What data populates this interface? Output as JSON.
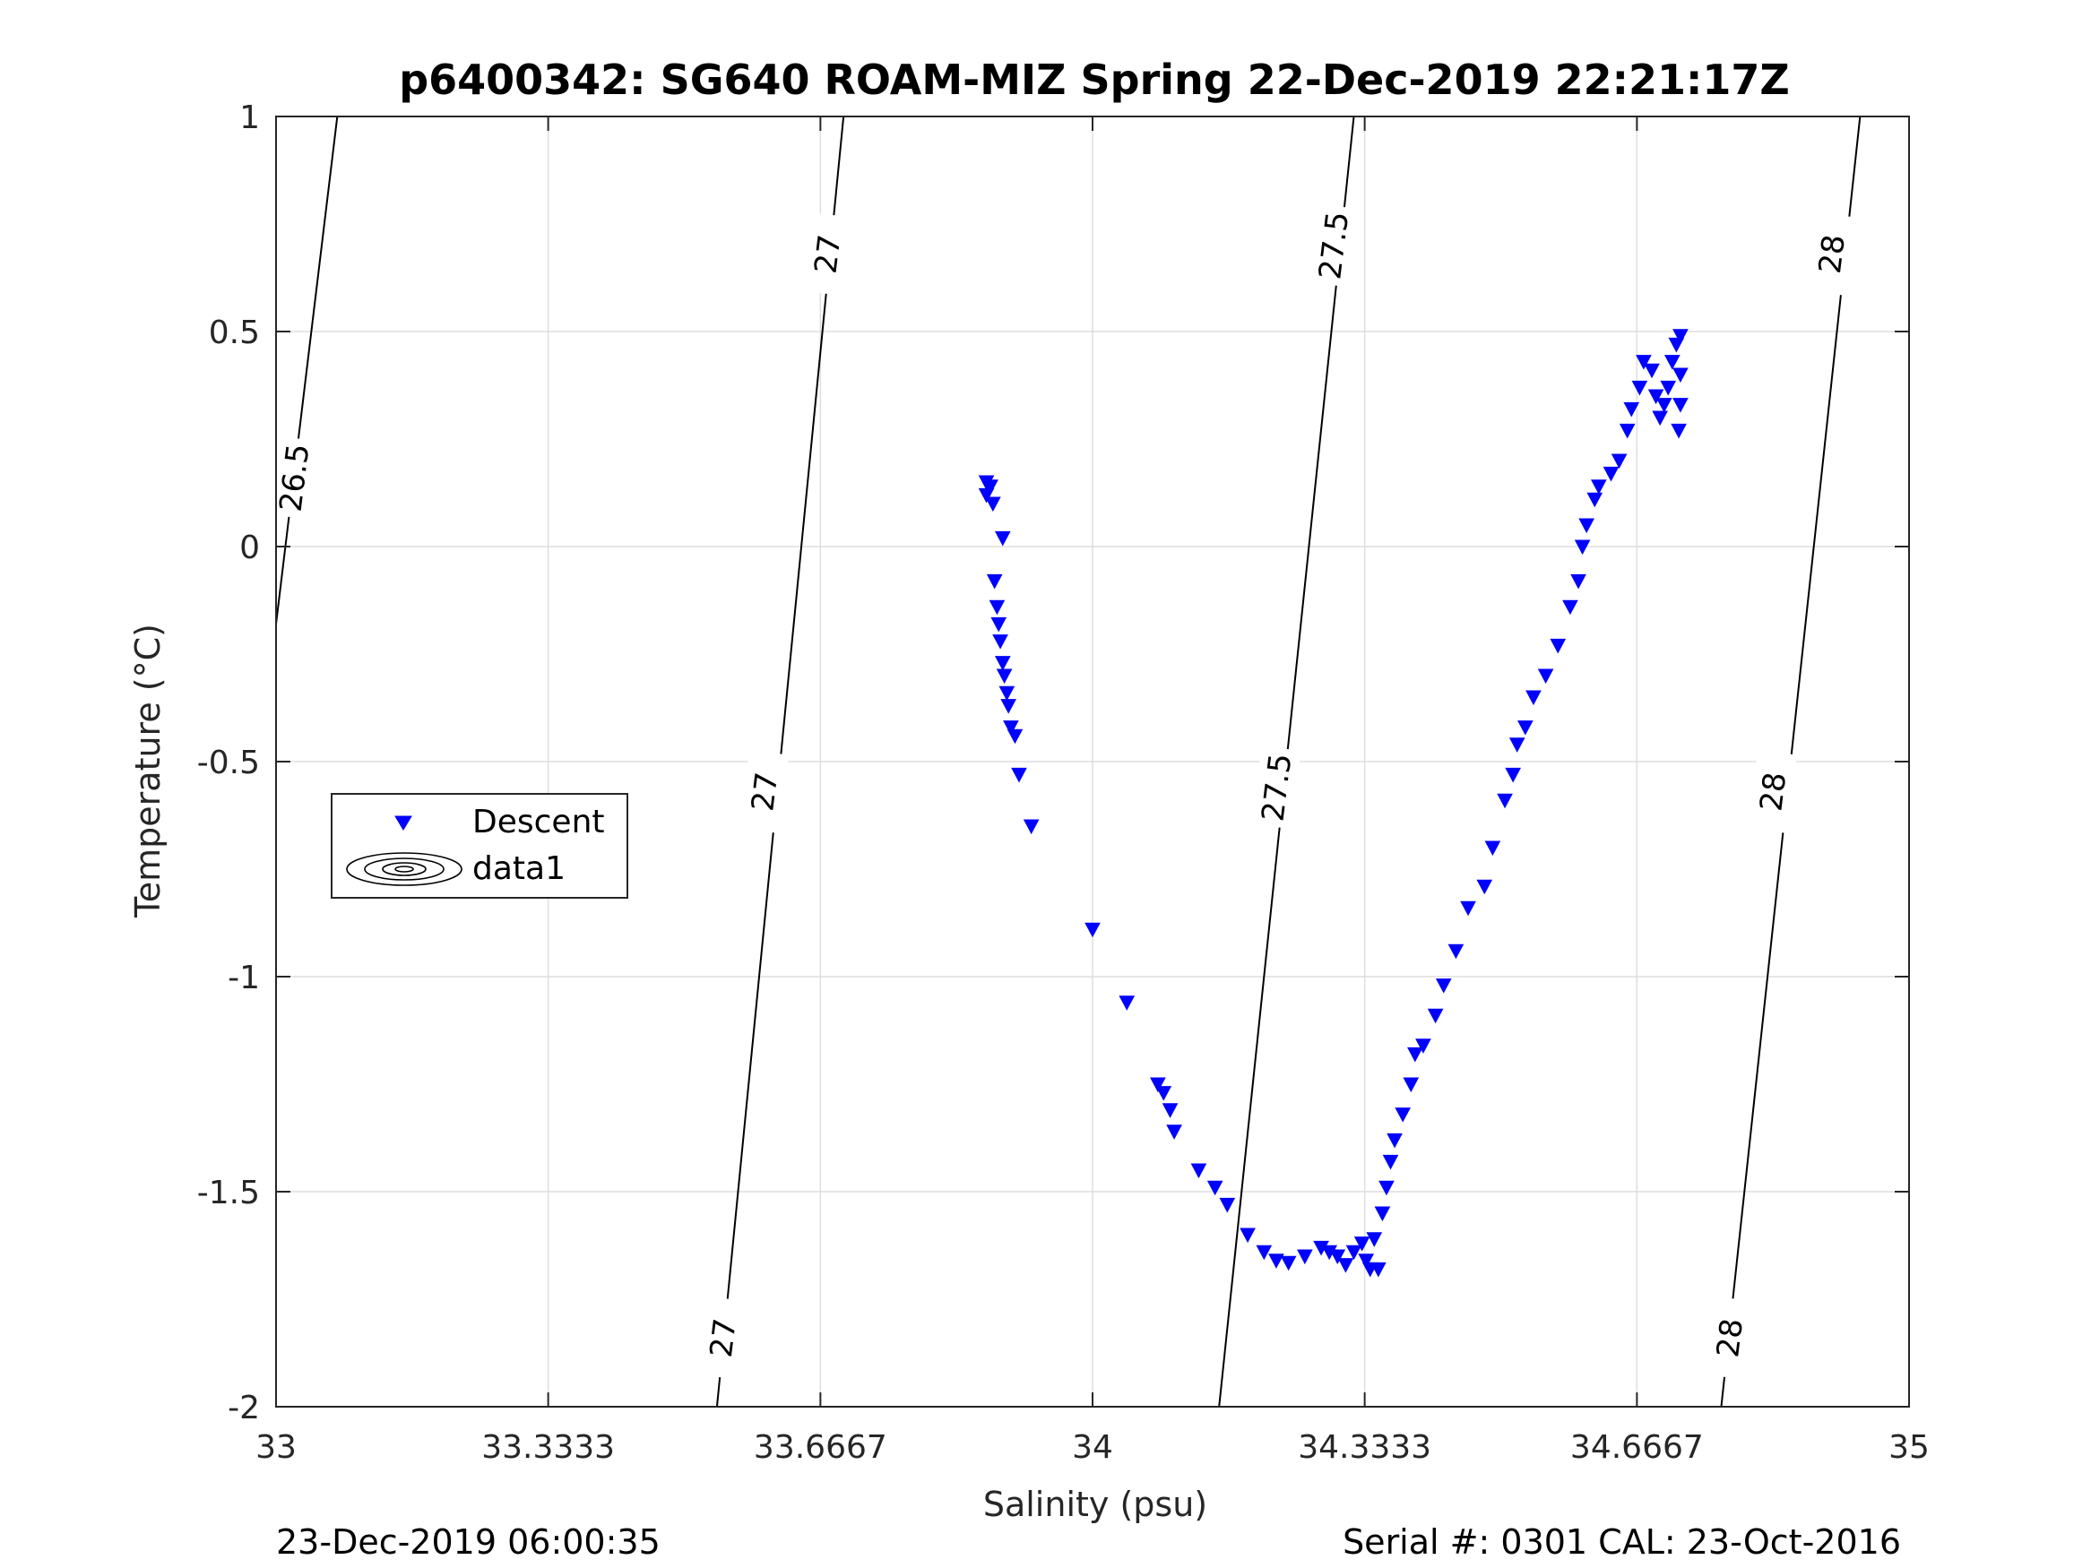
{
  "chart_data": {
    "type": "scatter",
    "title": "p6400342: SG640 ROAM-MIZ Spring 22-Dec-2019 22:21:17Z",
    "xlabel": "Salinity (psu)",
    "ylabel": "Temperature (°C)",
    "xlim": [
      33,
      35
    ],
    "ylim": [
      -2,
      1
    ],
    "x_ticks": [
      33,
      33.3333,
      33.6667,
      34,
      34.3333,
      34.6667,
      35
    ],
    "x_tick_labels": [
      "33",
      "33.3333",
      "33.6667",
      "34",
      "34.3333",
      "34.6667",
      "35"
    ],
    "y_ticks": [
      -2,
      -1.5,
      -1,
      -0.5,
      0,
      0.5,
      1
    ],
    "y_tick_labels": [
      "-2",
      "-1.5",
      "-1",
      "-0.5",
      "0",
      "0.5",
      "1"
    ],
    "grid": true,
    "legend": {
      "placement": "middle-left",
      "entries": [
        "Descent",
        "data1"
      ]
    },
    "series": [
      {
        "name": "Descent",
        "marker": "triangle-down",
        "color": "#0000ff",
        "points": [
          [
            33.87,
            0.15
          ],
          [
            33.875,
            0.14
          ],
          [
            33.87,
            0.12
          ],
          [
            33.878,
            0.1
          ],
          [
            33.89,
            0.02
          ],
          [
            33.88,
            -0.08
          ],
          [
            33.883,
            -0.14
          ],
          [
            33.885,
            -0.18
          ],
          [
            33.887,
            -0.22
          ],
          [
            33.89,
            -0.27
          ],
          [
            33.892,
            -0.3
          ],
          [
            33.895,
            -0.34
          ],
          [
            33.897,
            -0.37
          ],
          [
            33.9,
            -0.42
          ],
          [
            33.905,
            -0.44
          ],
          [
            33.91,
            -0.53
          ],
          [
            33.925,
            -0.65
          ],
          [
            34.0,
            -0.89
          ],
          [
            34.042,
            -1.06
          ],
          [
            34.08,
            -1.25
          ],
          [
            34.087,
            -1.27
          ],
          [
            34.095,
            -1.31
          ],
          [
            34.1,
            -1.36
          ],
          [
            34.13,
            -1.45
          ],
          [
            34.15,
            -1.49
          ],
          [
            34.165,
            -1.53
          ],
          [
            34.19,
            -1.6
          ],
          [
            34.21,
            -1.64
          ],
          [
            34.225,
            -1.66
          ],
          [
            34.24,
            -1.665
          ],
          [
            34.26,
            -1.65
          ],
          [
            34.28,
            -1.63
          ],
          [
            34.29,
            -1.64
          ],
          [
            34.3,
            -1.65
          ],
          [
            34.31,
            -1.67
          ],
          [
            34.32,
            -1.64
          ],
          [
            34.33,
            -1.62
          ],
          [
            34.335,
            -1.66
          ],
          [
            34.34,
            -1.68
          ],
          [
            34.345,
            -1.61
          ],
          [
            34.35,
            -1.68
          ],
          [
            34.355,
            -1.55
          ],
          [
            34.36,
            -1.49
          ],
          [
            34.365,
            -1.43
          ],
          [
            34.37,
            -1.38
          ],
          [
            34.38,
            -1.32
          ],
          [
            34.39,
            -1.25
          ],
          [
            34.395,
            -1.18
          ],
          [
            34.405,
            -1.16
          ],
          [
            34.42,
            -1.09
          ],
          [
            34.43,
            -1.02
          ],
          [
            34.445,
            -0.94
          ],
          [
            34.46,
            -0.84
          ],
          [
            34.48,
            -0.79
          ],
          [
            34.49,
            -0.7
          ],
          [
            34.505,
            -0.59
          ],
          [
            34.515,
            -0.53
          ],
          [
            34.52,
            -0.46
          ],
          [
            34.53,
            -0.42
          ],
          [
            34.54,
            -0.35
          ],
          [
            34.555,
            -0.3
          ],
          [
            34.57,
            -0.23
          ],
          [
            34.585,
            -0.14
          ],
          [
            34.595,
            -0.08
          ],
          [
            34.6,
            0.0
          ],
          [
            34.605,
            0.05
          ],
          [
            34.615,
            0.11
          ],
          [
            34.62,
            0.14
          ],
          [
            34.635,
            0.17
          ],
          [
            34.645,
            0.2
          ],
          [
            34.655,
            0.27
          ],
          [
            34.66,
            0.32
          ],
          [
            34.67,
            0.37
          ],
          [
            34.675,
            0.43
          ],
          [
            34.685,
            0.41
          ],
          [
            34.69,
            0.35
          ],
          [
            34.695,
            0.3
          ],
          [
            34.7,
            0.33
          ],
          [
            34.705,
            0.37
          ],
          [
            34.71,
            0.43
          ],
          [
            34.715,
            0.47
          ],
          [
            34.72,
            0.49
          ],
          [
            34.72,
            0.4
          ],
          [
            34.72,
            0.33
          ],
          [
            34.718,
            0.27
          ]
        ]
      }
    ],
    "density_contours": [
      {
        "level": "26.5",
        "points": [
          [
            33.0,
            -0.18
          ],
          [
            33.075,
            1.0
          ]
        ]
      },
      {
        "level": "27",
        "points": [
          [
            33.54,
            -2.0
          ],
          [
            33.695,
            1.0
          ]
        ]
      },
      {
        "level": "27.5",
        "points": [
          [
            34.155,
            -2.0
          ],
          [
            34.32,
            1.0
          ]
        ]
      },
      {
        "level": "28",
        "points": [
          [
            34.77,
            -2.0
          ],
          [
            34.94,
            1.0
          ]
        ]
      }
    ],
    "contour_labels": [
      {
        "text": "26.5",
        "x": 33.022,
        "y": 0.16
      },
      {
        "text": "27",
        "x": 33.675,
        "y": 0.68
      },
      {
        "text": "27",
        "x": 33.598,
        "y": -0.57
      },
      {
        "text": "27",
        "x": 33.547,
        "y": -1.84
      },
      {
        "text": "27.5",
        "x": 34.295,
        "y": 0.7
      },
      {
        "text": "27.5",
        "x": 34.225,
        "y": -0.56
      },
      {
        "text": "28",
        "x": 34.905,
        "y": 0.68
      },
      {
        "text": "28",
        "x": 34.833,
        "y": -0.57
      },
      {
        "text": "28",
        "x": 34.78,
        "y": -1.84
      }
    ]
  },
  "footer": {
    "left": "23-Dec-2019 06:00:35",
    "right": "Serial #: 0301  CAL: 23-Oct-2016"
  }
}
